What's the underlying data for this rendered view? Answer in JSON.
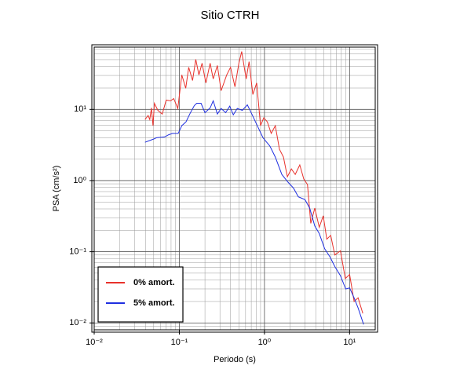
{
  "chart_data": {
    "type": "line",
    "title": "Sitio CTRH",
    "x_label": "Periodo (s)",
    "y_label": "PSA (cm/s²)",
    "log_x": true,
    "log_y": true,
    "grid": true,
    "legend_position": "lower left",
    "xlim": [
      0.01,
      20
    ],
    "ylim": [
      0.008,
      75
    ],
    "xticks": [
      {
        "value": 0.01,
        "label": "10⁻²"
      },
      {
        "value": 0.1,
        "label": "10⁻¹"
      },
      {
        "value": 1,
        "label": "10⁰"
      },
      {
        "value": 10,
        "label": "10¹"
      }
    ],
    "yticks": [
      {
        "value": 0.01,
        "label": "10⁻²"
      },
      {
        "value": 0.1,
        "label": "10⁻¹"
      },
      {
        "value": 1,
        "label": "10⁰"
      },
      {
        "value": 10,
        "label": "10¹"
      }
    ],
    "series": [
      {
        "name": "0% amort.",
        "color": "#e8312b",
        "x": [
          0.0395,
          0.043,
          0.045,
          0.047,
          0.049,
          0.051,
          0.056,
          0.063,
          0.07,
          0.079,
          0.086,
          0.096,
          0.107,
          0.119,
          0.129,
          0.143,
          0.156,
          0.17,
          0.185,
          0.205,
          0.23,
          0.25,
          0.28,
          0.31,
          0.36,
          0.4,
          0.45,
          0.5,
          0.54,
          0.61,
          0.66,
          0.73,
          0.81,
          0.9,
          0.98,
          1.08,
          1.2,
          1.34,
          1.5,
          1.67,
          1.86,
          2.07,
          2.3,
          2.6,
          2.9,
          3.2,
          3.5,
          3.9,
          4.4,
          4.9,
          5.4,
          6.0,
          6.7,
          7.8,
          8.9,
          10.0,
          11.3,
          12.6,
          14.3
        ],
        "values": [
          7.2,
          8.2,
          7.2,
          10.5,
          5.9,
          12.2,
          9.7,
          8.6,
          13.5,
          13.2,
          14.2,
          10.3,
          30.5,
          19.8,
          39,
          25.5,
          50.5,
          30.5,
          44.5,
          23.5,
          44.5,
          26.8,
          41.4,
          18.3,
          30.5,
          39,
          20.8,
          44.5,
          65,
          26.8,
          46.9,
          16.2,
          23.5,
          5.9,
          7.6,
          6.7,
          4.6,
          5.9,
          2.75,
          2.14,
          1.13,
          1.46,
          1.22,
          1.66,
          1.05,
          0.88,
          0.25,
          0.41,
          0.22,
          0.32,
          0.15,
          0.17,
          0.09,
          0.103,
          0.042,
          0.048,
          0.02,
          0.0225,
          0.0136
        ]
      },
      {
        "name": "5% amort.",
        "color": "#1f2fe0",
        "x": [
          0.0395,
          0.049,
          0.054,
          0.067,
          0.075,
          0.083,
          0.097,
          0.107,
          0.12,
          0.134,
          0.15,
          0.16,
          0.18,
          0.2,
          0.23,
          0.25,
          0.28,
          0.31,
          0.35,
          0.39,
          0.43,
          0.48,
          0.55,
          0.63,
          0.71,
          0.84,
          0.96,
          1.16,
          1.34,
          1.6,
          1.89,
          2.2,
          2.5,
          2.99,
          3.4,
          3.9,
          4.4,
          5.1,
          5.9,
          6.7,
          7.8,
          9.0,
          10.0,
          11.3,
          12.6,
          14.6
        ],
        "values": [
          3.45,
          3.8,
          4.0,
          4.1,
          4.4,
          4.6,
          4.6,
          5.9,
          6.7,
          8.8,
          11.3,
          12.2,
          12.2,
          9.0,
          10.5,
          13.2,
          8.6,
          10.3,
          9.0,
          11.1,
          8.4,
          10.3,
          9.7,
          11.6,
          8.6,
          5.6,
          4.0,
          3.04,
          2.14,
          1.22,
          0.95,
          0.78,
          0.59,
          0.54,
          0.41,
          0.23,
          0.18,
          0.11,
          0.084,
          0.062,
          0.046,
          0.03,
          0.031,
          0.0225,
          0.0162,
          0.0095
        ]
      }
    ]
  }
}
